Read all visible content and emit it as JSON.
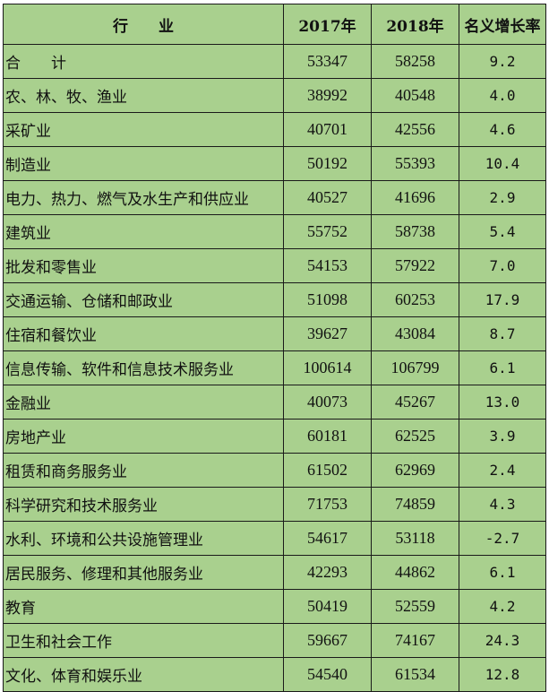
{
  "table": {
    "headers": [
      "行　　业",
      "2017年",
      "2018年",
      "名义增长率"
    ],
    "rows": [
      {
        "industry": "合　　计",
        "y2017": "53347",
        "y2018": "58258",
        "growth": "9.2"
      },
      {
        "industry": "农、林、牧、渔业",
        "y2017": "38992",
        "y2018": "40548",
        "growth": "4.0"
      },
      {
        "industry": "采矿业",
        "y2017": "40701",
        "y2018": "42556",
        "growth": "4.6"
      },
      {
        "industry": "制造业",
        "y2017": "50192",
        "y2018": "55393",
        "growth": "10.4"
      },
      {
        "industry": "电力、热力、燃气及水生产和供应业",
        "y2017": "40527",
        "y2018": "41696",
        "growth": "2.9"
      },
      {
        "industry": "建筑业",
        "y2017": "55752",
        "y2018": "58738",
        "growth": "5.4"
      },
      {
        "industry": "批发和零售业",
        "y2017": "54153",
        "y2018": "57922",
        "growth": "7.0"
      },
      {
        "industry": "交通运输、仓储和邮政业",
        "y2017": "51098",
        "y2018": "60253",
        "growth": "17.9"
      },
      {
        "industry": "住宿和餐饮业",
        "y2017": "39627",
        "y2018": "43084",
        "growth": "8.7"
      },
      {
        "industry": "信息传输、软件和信息技术服务业",
        "y2017": "100614",
        "y2018": "106799",
        "growth": "6.1"
      },
      {
        "industry": "金融业",
        "y2017": "40073",
        "y2018": "45267",
        "growth": "13.0"
      },
      {
        "industry": "房地产业",
        "y2017": "60181",
        "y2018": "62525",
        "growth": "3.9"
      },
      {
        "industry": "租赁和商务服务业",
        "y2017": "61502",
        "y2018": "62969",
        "growth": "2.4"
      },
      {
        "industry": "科学研究和技术服务业",
        "y2017": "71753",
        "y2018": "74859",
        "growth": "4.3"
      },
      {
        "industry": "水利、环境和公共设施管理业",
        "y2017": "54617",
        "y2018": "53118",
        "growth": "-2.7"
      },
      {
        "industry": "居民服务、修理和其他服务业",
        "y2017": "42293",
        "y2018": "44862",
        "growth": "6.1"
      },
      {
        "industry": "教育",
        "y2017": "50419",
        "y2018": "52559",
        "growth": "4.2"
      },
      {
        "industry": "卫生和社会工作",
        "y2017": "59667",
        "y2018": "74167",
        "growth": "24.3"
      },
      {
        "industry": "文化、体育和娱乐业",
        "y2017": "54540",
        "y2018": "61534",
        "growth": "12.8"
      }
    ]
  },
  "colors": {
    "background": "#a9d08e",
    "border": "#1a1a1a"
  }
}
